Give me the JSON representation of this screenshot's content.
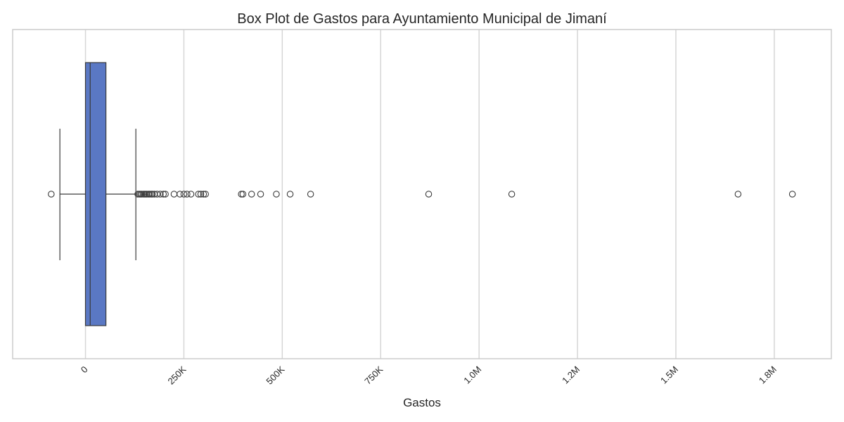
{
  "chart_data": {
    "type": "box",
    "title": "Box Plot de Gastos para Ayuntamiento Municipal de Jimaní",
    "xlabel": "Gastos",
    "ylabel": "",
    "orientation": "horizontal",
    "xlim": [
      -185000,
      1895000
    ],
    "xticks": [
      {
        "value": 0,
        "label": "0"
      },
      {
        "value": 250000,
        "label": "250K"
      },
      {
        "value": 500000,
        "label": "500K"
      },
      {
        "value": 750000,
        "label": "750K"
      },
      {
        "value": 1000000,
        "label": "1.0M"
      },
      {
        "value": 1250000,
        "label": "1.2M"
      },
      {
        "value": 1500000,
        "label": "1.5M"
      },
      {
        "value": 1750000,
        "label": "1.8M"
      }
    ],
    "grid": true,
    "box": {
      "whisker_low": -65000,
      "q1": 0,
      "median": 12000,
      "q3": 52000,
      "whisker_high": 128000
    },
    "outliers": [
      -87000,
      133000,
      137000,
      140000,
      143000,
      147000,
      150000,
      153000,
      156000,
      160000,
      163000,
      167000,
      170000,
      175000,
      182000,
      190000,
      198000,
      203000,
      225000,
      240000,
      250000,
      258000,
      268000,
      287000,
      293000,
      300000,
      305000,
      396000,
      400000,
      422000,
      445000,
      485000,
      520000,
      572000,
      872000,
      1083000,
      1658000,
      1796000
    ],
    "colors": {
      "box_fill": "#5a78c4",
      "box_edge": "#3a3a3a",
      "grid": "#d6d6d6",
      "frame": "#cccccc",
      "outlier_edge": "#3a3a3a"
    }
  }
}
